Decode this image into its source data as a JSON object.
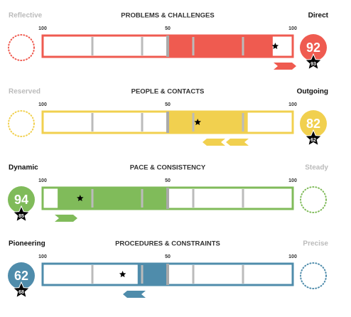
{
  "scales": [
    {
      "title": "PROBLEMS & CHALLENGES",
      "left_label": "Reflective",
      "right_label": "Direct",
      "side": "right",
      "score": 92,
      "badge": 93,
      "color": "#ef5b50",
      "scale_labels": [
        100,
        50,
        100
      ]
    },
    {
      "title": "PEOPLE & CONTACTS",
      "left_label": "Reserved",
      "right_label": "Outgoing",
      "side": "right",
      "score": 82,
      "badge": 62,
      "color": "#f1d04f",
      "scale_labels": [
        100,
        50,
        100
      ]
    },
    {
      "title": "PACE & CONSISTENCY",
      "left_label": "Dynamic",
      "right_label": "Steady",
      "side": "left",
      "score": 94,
      "badge": 85,
      "color": "#80bb5a",
      "scale_labels": [
        100,
        50,
        100
      ]
    },
    {
      "title": "PROCEDURES & CONSTRAINTS",
      "left_label": "Pioneering",
      "right_label": "Precise",
      "side": "left",
      "score": 62,
      "badge": 68,
      "color": "#4f8cab",
      "scale_labels": [
        100,
        50,
        100
      ]
    }
  ]
}
